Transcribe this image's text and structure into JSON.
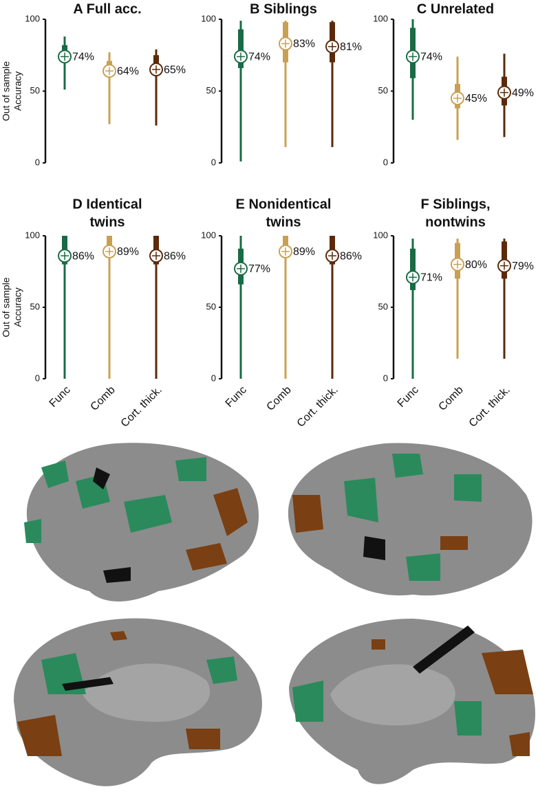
{
  "chart_data": [
    {
      "type": "interval",
      "title": [
        "A Full acc."
      ],
      "ylabel": [
        "Out of sample",
        "Accuracy"
      ],
      "categories": [
        null,
        null,
        null
      ],
      "colors": [
        "#1a6b45",
        "#c9a052",
        "#5a2a0a"
      ],
      "values": [
        74,
        64,
        65
      ],
      "value_labels": [
        "74%",
        "64%",
        "65%"
      ],
      "box_low": [
        70,
        61,
        62
      ],
      "box_high": [
        82,
        71,
        75
      ],
      "whisker_low": [
        51,
        27,
        26
      ],
      "whisker_high": [
        88,
        77,
        79
      ],
      "ylim": [
        0,
        100
      ],
      "yticks": [
        0,
        50,
        100
      ]
    },
    {
      "type": "interval",
      "title": [
        "B Siblings"
      ],
      "categories": [
        null,
        null,
        null
      ],
      "colors": [
        "#1a6b45",
        "#c9a052",
        "#5a2a0a"
      ],
      "values": [
        74,
        83,
        81
      ],
      "value_labels": [
        "74%",
        "83%",
        "81%"
      ],
      "box_low": [
        66,
        70,
        70
      ],
      "box_high": [
        93,
        98,
        98
      ],
      "whisker_low": [
        1,
        11,
        11
      ],
      "whisker_high": [
        99,
        99,
        99
      ],
      "ylim": [
        0,
        100
      ],
      "yticks": [
        0,
        50,
        100
      ]
    },
    {
      "type": "interval",
      "title": [
        "C Unrelated"
      ],
      "categories": [
        null,
        null,
        null
      ],
      "colors": [
        "#1a6b45",
        "#c9a052",
        "#5a2a0a"
      ],
      "values": [
        74,
        45,
        49
      ],
      "value_labels": [
        "74%",
        "45%",
        "49%"
      ],
      "box_low": [
        59,
        38,
        40
      ],
      "box_high": [
        94,
        55,
        60
      ],
      "whisker_low": [
        30,
        16,
        18
      ],
      "whisker_high": [
        100,
        74,
        76
      ],
      "ylim": [
        0,
        100
      ],
      "yticks": [
        0,
        50,
        100
      ]
    },
    {
      "type": "interval",
      "title": [
        "D Identical",
        "twins"
      ],
      "ylabel": [
        "Out of sample",
        "Accuracy"
      ],
      "categories": [
        "Func",
        "Comb",
        "Cort. thick."
      ],
      "colors": [
        "#1a6b45",
        "#c9a052",
        "#5a2a0a"
      ],
      "values": [
        86,
        89,
        86
      ],
      "value_labels": [
        "86%",
        "89%",
        "86%"
      ],
      "box_low": [
        80,
        85,
        80
      ],
      "box_high": [
        100,
        100,
        100
      ],
      "whisker_low": [
        0,
        0,
        0
      ],
      "whisker_high": [
        100,
        100,
        100
      ],
      "ylim": [
        0,
        100
      ],
      "yticks": [
        0,
        50,
        100
      ]
    },
    {
      "type": "interval",
      "title": [
        "E Nonidentical",
        "twins"
      ],
      "categories": [
        "Func",
        "Comb",
        "Cort. thick."
      ],
      "colors": [
        "#1a6b45",
        "#c9a052",
        "#5a2a0a"
      ],
      "values": [
        77,
        89,
        86
      ],
      "value_labels": [
        "77%",
        "89%",
        "86%"
      ],
      "box_low": [
        66,
        85,
        80
      ],
      "box_high": [
        91,
        100,
        100
      ],
      "whisker_low": [
        0,
        0,
        0
      ],
      "whisker_high": [
        100,
        100,
        100
      ],
      "ylim": [
        0,
        100
      ],
      "yticks": [
        0,
        50,
        100
      ]
    },
    {
      "type": "interval",
      "title": [
        "F Siblings,",
        "nontwins"
      ],
      "categories": [
        "Func",
        "Comb",
        "Cort. thick."
      ],
      "colors": [
        "#1a6b45",
        "#c9a052",
        "#5a2a0a"
      ],
      "values": [
        71,
        80,
        79
      ],
      "value_labels": [
        "71%",
        "80%",
        "79%"
      ],
      "box_low": [
        62,
        70,
        70
      ],
      "box_high": [
        91,
        95,
        96
      ],
      "whisker_low": [
        0,
        14,
        14
      ],
      "whisker_high": [
        98,
        98,
        98
      ],
      "ylim": [
        0,
        100
      ],
      "yticks": [
        0,
        50,
        100
      ]
    }
  ]
}
